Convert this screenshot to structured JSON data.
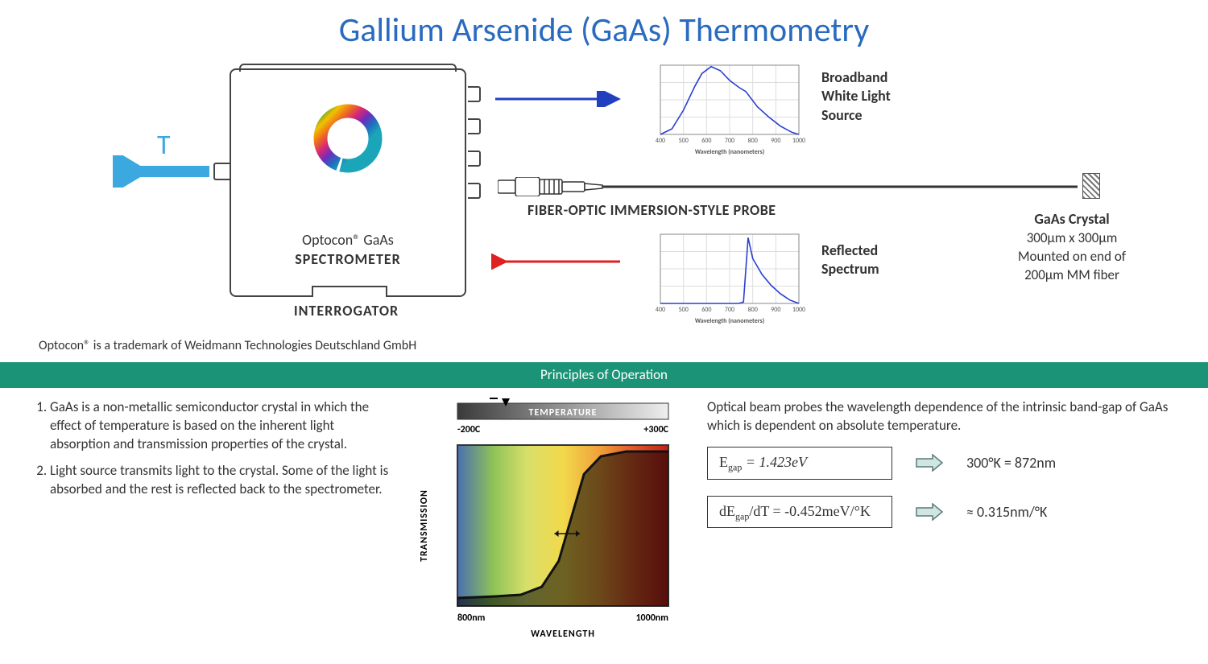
{
  "title": "Gallium Arsenide (GaAs) Thermometry",
  "temp_symbol": "T",
  "temp_arrow": {
    "color": "#3ba8e0",
    "stroke_width": 14,
    "head_width": 28
  },
  "spectrometer": {
    "line1": "Optocon® GaAs",
    "line2": "SPECTROMETER",
    "caption": "INTERROGATOR",
    "logo_colors": [
      "#2a9d3a",
      "#f2c200",
      "#ef6b1f",
      "#d4267a",
      "#6a2fbf",
      "#1f6fbf",
      "#1aa6b8"
    ]
  },
  "output_arrow": {
    "color": "#2040c0",
    "stroke_width": 3,
    "length": 150
  },
  "input_arrow": {
    "color": "#e02020",
    "stroke_width": 3,
    "length": 150
  },
  "probe": {
    "label": "FIBER-OPTIC IMMERSION-STYLE PROBE",
    "outline": "#333"
  },
  "crystal": {
    "title": "GaAs Crystal",
    "line1": "300µm x 300µm",
    "line2": "Mounted on end of",
    "line3": "200µm MM fiber"
  },
  "source_chart": {
    "label": "Broadband White Light Source",
    "axis_label": "Wavelength (nanometers)",
    "x_ticks": [
      "400",
      "500",
      "600",
      "700",
      "800",
      "900",
      "1000"
    ],
    "line_color": "#2a3fd0",
    "grid_color": "#dddddd",
    "bg": "#ffffff",
    "points": [
      [
        400,
        0.0
      ],
      [
        450,
        0.08
      ],
      [
        500,
        0.35
      ],
      [
        550,
        0.7
      ],
      [
        580,
        0.88
      ],
      [
        620,
        0.98
      ],
      [
        660,
        0.92
      ],
      [
        700,
        0.78
      ],
      [
        740,
        0.68
      ],
      [
        770,
        0.62
      ],
      [
        820,
        0.4
      ],
      [
        870,
        0.25
      ],
      [
        920,
        0.12
      ],
      [
        970,
        0.03
      ],
      [
        1000,
        0.0
      ]
    ]
  },
  "reflected_chart": {
    "label": "Reflected Spectrum",
    "axis_label": "Wavelength (nanometers)",
    "x_ticks": [
      "400",
      "500",
      "600",
      "700",
      "800",
      "900",
      "1000"
    ],
    "line_color": "#2a3fd0",
    "grid_color": "#dddddd",
    "bg": "#ffffff",
    "points": [
      [
        400,
        0.0
      ],
      [
        740,
        0.0
      ],
      [
        760,
        0.02
      ],
      [
        780,
        0.95
      ],
      [
        800,
        0.65
      ],
      [
        840,
        0.42
      ],
      [
        880,
        0.26
      ],
      [
        920,
        0.14
      ],
      [
        960,
        0.05
      ],
      [
        1000,
        0.0
      ]
    ]
  },
  "trademark": "Optocon® is a trademark of Weidmann Technologies Deutschland GmbH",
  "section_header": "Principles of Operation",
  "principles": [
    "GaAs is a non-metallic semiconductor crystal in which the effect of temperature is based on the inherent light absorption and transmission properties of the crystal.",
    "Light source transmits light to the crystal. Some of the light is absorbed and the rest is reflected back to the spectrometer."
  ],
  "transmission_chart": {
    "top_label": "TEMPERATURE",
    "t_min": "-200C",
    "t_max": "+300C",
    "y_label": "TRANSMISSION",
    "x_label": "WAVELENGTH",
    "x_min": "800nm",
    "x_max": "1000nm",
    "bg_colors": [
      "#4a6fb0",
      "#8fc357",
      "#d8df6a",
      "#f2d94c",
      "#f0a23a",
      "#e05a2a",
      "#c02018"
    ],
    "curve_color": "#111111",
    "temp_bar_gradient": [
      "#3a3a3a",
      "#efefef"
    ],
    "curve": [
      [
        0,
        0.05
      ],
      [
        0.18,
        0.06
      ],
      [
        0.3,
        0.07
      ],
      [
        0.4,
        0.12
      ],
      [
        0.48,
        0.28
      ],
      [
        0.54,
        0.55
      ],
      [
        0.6,
        0.82
      ],
      [
        0.68,
        0.93
      ],
      [
        0.8,
        0.96
      ],
      [
        1.0,
        0.96
      ]
    ]
  },
  "right_text": "Optical beam probes the wavelength dependence of the intrinsic band-gap of GaAs which is dependent on absolute temperature.",
  "equations": {
    "eq1": {
      "lhs": "E",
      "sub": "gap",
      "rhs": " =  1.423eV"
    },
    "eq2": {
      "lhs": "dE",
      "sub": "gap",
      "rhs": "/dT = -0.452meV/°K"
    },
    "res1": "300°K = 872nm",
    "res2": "≈ 0.315nm/°K",
    "arrow_fill": "#cfe6e2",
    "arrow_stroke": "#5a7a78"
  }
}
